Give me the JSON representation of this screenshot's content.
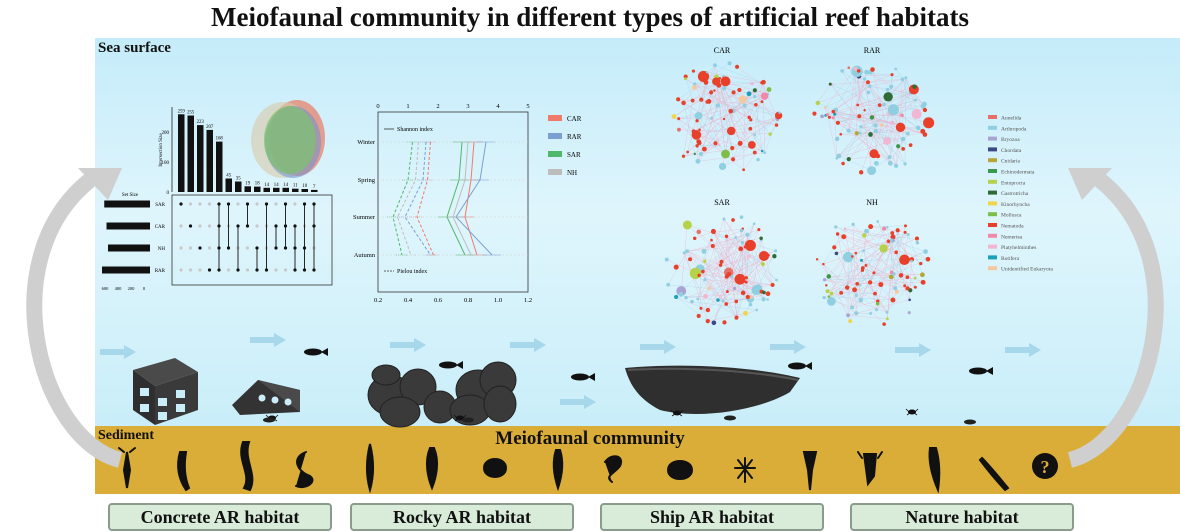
{
  "title": "Meiofaunal community in different types of artificial reef habitats",
  "sea_surface_label": "Sea surface",
  "sediment_label": "Sediment",
  "community_label": "Meiofaunal community",
  "habitats": [
    "Concrete AR habitat",
    "Rocky AR habitat",
    "Ship AR habitat",
    "Nature habitat"
  ],
  "upset": {
    "y_axis_label": "Intersection Size",
    "intersection_sizes": [
      259,
      255,
      223,
      207,
      168,
      45,
      35,
      19,
      18,
      14,
      14,
      14,
      11,
      10,
      7
    ],
    "set_size_label": "Set Size",
    "sets": [
      "SAR",
      "CAR",
      "NH",
      "RAR"
    ],
    "set_sizes": [
      610,
      580,
      560,
      640
    ],
    "set_size_ticks": [
      "600",
      "400",
      "200",
      "0"
    ],
    "y_ticks": [
      "200",
      "100",
      "0"
    ]
  },
  "diversity": {
    "seasons": [
      "Winter",
      "Spring",
      "Summer",
      "Autumn"
    ],
    "top_ticks": [
      "0",
      "1",
      "2",
      "3",
      "4",
      "5"
    ],
    "bottom_ticks": [
      "0.2",
      "0.4",
      "0.6",
      "0.8",
      "1.0",
      "1.2"
    ],
    "shannon_label": "Shannon index",
    "pielou_label": "Pielou index",
    "legend": [
      {
        "name": "CAR",
        "color": "#f07b6a"
      },
      {
        "name": "RAR",
        "color": "#7c9fd1"
      },
      {
        "name": "SAR",
        "color": "#4fb86a"
      },
      {
        "name": "NH",
        "color": "#bdbdbd"
      }
    ],
    "shannon": {
      "CAR": [
        3.2,
        3.1,
        2.9,
        3.3
      ],
      "RAR": [
        3.6,
        3.4,
        2.6,
        3.8
      ],
      "SAR": [
        2.8,
        2.7,
        2.3,
        2.9
      ],
      "NH": [
        3.0,
        2.9,
        2.5,
        3.1
      ]
    },
    "pielou": {
      "CAR": [
        0.55,
        0.53,
        0.46,
        0.57
      ],
      "RAR": [
        0.52,
        0.5,
        0.38,
        0.55
      ],
      "SAR": [
        0.43,
        0.4,
        0.3,
        0.36
      ],
      "NH": [
        0.47,
        0.45,
        0.33,
        0.42
      ]
    }
  },
  "networks": [
    "CAR",
    "RAR",
    "SAR",
    "NH"
  ],
  "phyla_legend": [
    {
      "name": "Annelida",
      "color": "#e8706a"
    },
    {
      "name": "Arthropoda",
      "color": "#8fcfe0"
    },
    {
      "name": "Bryozoa",
      "color": "#a9a3d3"
    },
    {
      "name": "Chordata",
      "color": "#3b4a86"
    },
    {
      "name": "Cnidaria",
      "color": "#b8a53a"
    },
    {
      "name": "Echinodermata",
      "color": "#3a9a4a"
    },
    {
      "name": "Entoprocta",
      "color": "#b6d24a"
    },
    {
      "name": "Gastrotricha",
      "color": "#2e6b35"
    },
    {
      "name": "Kinorhyncha",
      "color": "#f2d44a"
    },
    {
      "name": "Mollusca",
      "color": "#7dbd4a"
    },
    {
      "name": "Nematoda",
      "color": "#e8402a"
    },
    {
      "name": "Nemertea",
      "color": "#f08aa8"
    },
    {
      "name": "Platyhelminthes",
      "color": "#f2b6d2"
    },
    {
      "name": "Rotifera",
      "color": "#1aa0b8"
    },
    {
      "name": "Unidentified Eukaryota",
      "color": "#f4c9a0"
    }
  ],
  "colors": {
    "sea": "#d6f2fb",
    "sediment": "#d9ad38",
    "habitat_box": "#d8ecd9"
  }
}
